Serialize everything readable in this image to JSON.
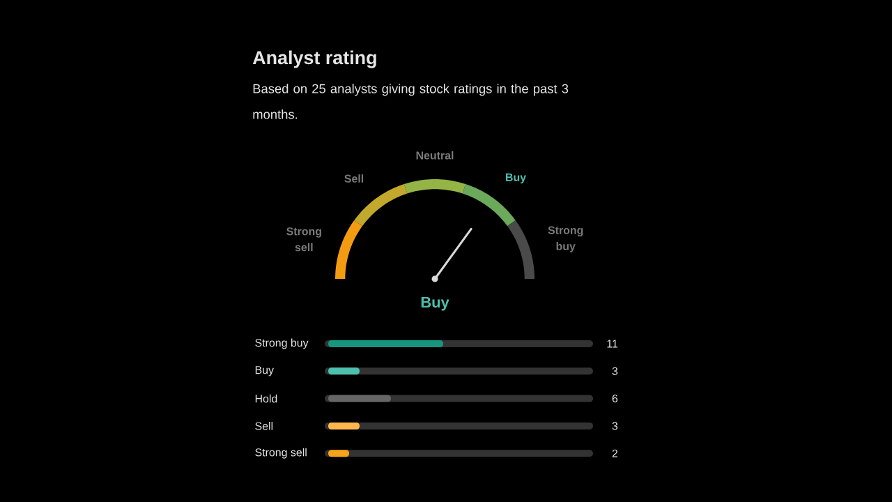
{
  "chart_data": [
    {
      "type": "donut",
      "title": "Analyst rating",
      "subtitle": "Based on 25 analysts giving stock ratings in the past 3 months.",
      "categories": [
        "Strong sell",
        "Sell",
        "Neutral",
        "Buy",
        "Strong buy"
      ],
      "values": [
        20,
        20,
        20,
        20,
        20
      ],
      "colors": [
        "#f39c12",
        "#c2a82c",
        "#94b446",
        "#6aaa5a",
        "#4a4a4a"
      ],
      "needle": "Buy"
    },
    {
      "type": "bar",
      "orientation": "horizontal",
      "categories": [
        "Strong buy",
        "Buy",
        "Hold",
        "Sell",
        "Strong sell"
      ],
      "values": [
        11,
        3,
        6,
        3,
        2
      ],
      "colors": [
        "#17967f",
        "#4dbfad",
        "#666666",
        "#ffb74d",
        "#f7a21b"
      ],
      "xlim": [
        0,
        25
      ],
      "data_labels": true,
      "tick_labels": "y"
    }
  ]
}
